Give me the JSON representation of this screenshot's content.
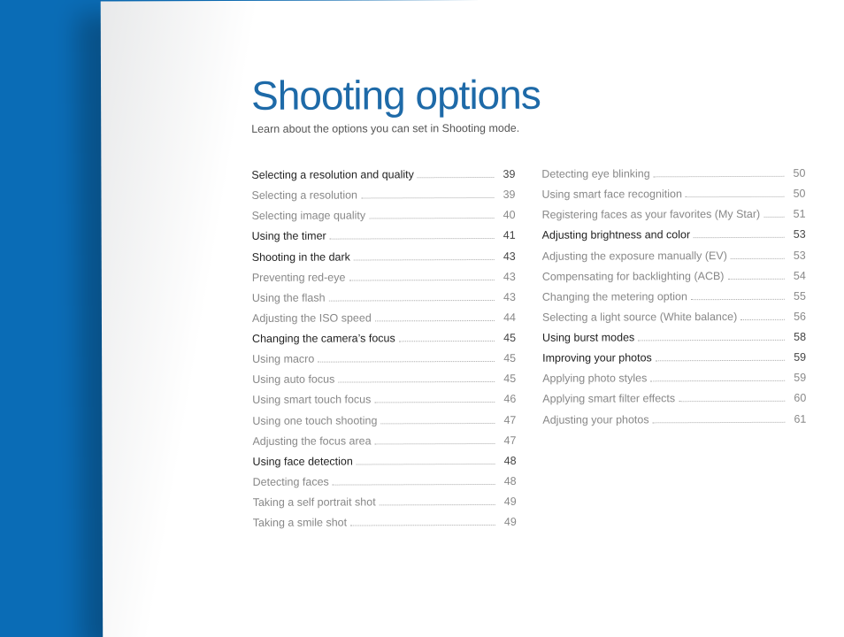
{
  "title": "Shooting options",
  "subtitle": "Learn about the options you can set in Shooting mode.",
  "background_color": "#0a6cb6",
  "title_color": "#1e6aa8",
  "text_color": "#888888",
  "section_color": "#222222",
  "page_gradient_from": "#e8e9ea",
  "page_gradient_to": "#ffffff",
  "columns": [
    [
      {
        "label": "Selecting a resolution and quality",
        "page": "39",
        "section": true
      },
      {
        "label": "Selecting a resolution",
        "page": "39"
      },
      {
        "label": "Selecting image quality",
        "page": "40"
      },
      {
        "label": "Using the timer",
        "page": "41",
        "section": true
      },
      {
        "label": "Shooting in the dark",
        "page": "43",
        "section": true
      },
      {
        "label": "Preventing red-eye",
        "page": "43"
      },
      {
        "label": "Using the flash",
        "page": "43"
      },
      {
        "label": "Adjusting the ISO speed",
        "page": "44"
      },
      {
        "label": "Changing the camera’s focus",
        "page": "45",
        "section": true
      },
      {
        "label": "Using macro",
        "page": "45"
      },
      {
        "label": "Using auto focus",
        "page": "45"
      },
      {
        "label": "Using smart touch focus",
        "page": "46"
      },
      {
        "label": "Using one touch shooting",
        "page": "47"
      },
      {
        "label": "Adjusting the focus area",
        "page": "47"
      },
      {
        "label": "Using face detection",
        "page": "48",
        "section": true
      },
      {
        "label": "Detecting faces",
        "page": "48"
      },
      {
        "label": "Taking a self portrait shot",
        "page": "49"
      },
      {
        "label": "Taking a smile shot",
        "page": "49"
      }
    ],
    [
      {
        "label": "Detecting eye blinking",
        "page": "50"
      },
      {
        "label": "Using smart face recognition",
        "page": "50"
      },
      {
        "label": "Registering faces as your favorites (My Star)",
        "page": "51"
      },
      {
        "label": "Adjusting brightness and color",
        "page": "53",
        "section": true
      },
      {
        "label": "Adjusting the exposure manually (EV)",
        "page": "53"
      },
      {
        "label": "Compensating for backlighting (ACB)",
        "page": "54"
      },
      {
        "label": "Changing the metering option",
        "page": "55"
      },
      {
        "label": "Selecting a light source (White balance)",
        "page": "56"
      },
      {
        "label": "Using burst modes",
        "page": "58",
        "section": true
      },
      {
        "label": "Improving your photos",
        "page": "59",
        "section": true
      },
      {
        "label": "Applying photo styles",
        "page": "59"
      },
      {
        "label": "Applying smart filter effects",
        "page": "60"
      },
      {
        "label": "Adjusting your photos",
        "page": "61"
      }
    ]
  ]
}
